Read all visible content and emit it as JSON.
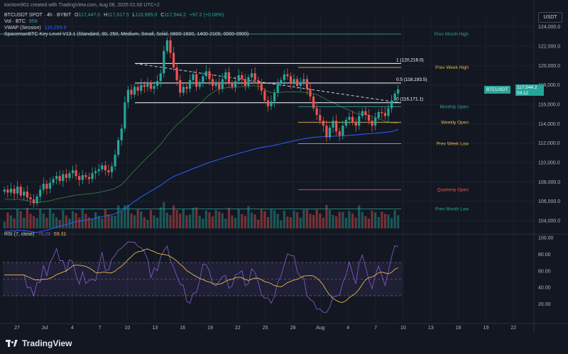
{
  "top_caption": "tomtom901 created with TradingView.com, Aug 08, 2025 01:00 UTC+2",
  "symbol_line": {
    "symbol": "BTCUSDT SPOT · 4h · BYBIT",
    "open_label": "O",
    "open": "117,447.0",
    "high_label": "H",
    "high": "117,617.5",
    "low_label": "L",
    "low": "116,995.0",
    "close_label": "C",
    "close": "117,544.2",
    "change": "+97.2 (+0.08%)"
  },
  "vol_line": {
    "label": "Vol · BTC",
    "value": "958"
  },
  "vwap_line": {
    "label": "VWAP (Session)",
    "value": "116,293.9"
  },
  "indicator_line": "SpacemanBTC Key Level V13.1 (Standard, 30, 250, Medium, Small, Solid, 0800-1600, 1400-2100, 0000-0900)",
  "rsi_line": {
    "label": "RSI (7, close)",
    "value1": "78.29",
    "value2": "59.31"
  },
  "currency": "USDT",
  "price_tag": {
    "symbol": "BTCUSDT",
    "price": "117,544.2",
    "countdown": "59:12"
  },
  "brand": "TradingView",
  "colors": {
    "up": "#26a69a",
    "down": "#ef5350",
    "vwap": "#2962ff",
    "rsi": "#7e57c2",
    "rsi_ma": "#e8b84a",
    "background": "#131722"
  },
  "icons": [
    "tradingview-logo-icon"
  ],
  "chart_data": {
    "type": "candlestick",
    "price_axis": {
      "ticks": [
        "124,000.0",
        "122,000.0",
        "120,000.0",
        "118,000.0",
        "116,000.0",
        "114,000.0",
        "112,000.0",
        "110,000.0",
        "108,000.0",
        "106,000.0",
        "104,000.0"
      ],
      "range": [
        103200,
        125000
      ]
    },
    "rsi_axis": {
      "ticks": [
        "100.00",
        "80.00",
        "60.00",
        "40.00",
        "20.00"
      ],
      "range": [
        0,
        100
      ],
      "bands": [
        30,
        50,
        70
      ]
    },
    "x_axis": {
      "labels": [
        "27",
        "Jul",
        "4",
        "7",
        "10",
        "13",
        "16",
        "19",
        "22",
        "25",
        "28",
        "Aug",
        "4",
        "7",
        "10",
        "13",
        "16",
        "19",
        "22"
      ]
    },
    "key_levels": [
      {
        "label": "Prev Month High",
        "price": 123250,
        "color": "#26a69a"
      },
      {
        "label": "Prev Week High",
        "price": 119800,
        "color": "#e8b84a"
      },
      {
        "label": "Monthly Open",
        "price": 115760,
        "color": "#26a69a"
      },
      {
        "label": "Weekly Open",
        "price": 114150,
        "color": "#e8b84a"
      },
      {
        "label": "Prev Week Low",
        "price": 111950,
        "color": "#e8b84a"
      },
      {
        "label": "Quarterly Open",
        "price": 107200,
        "color": "#ef5350"
      },
      {
        "label": "Prev Month Low",
        "price": 105200,
        "color": "#26a69a"
      }
    ],
    "fib_levels": [
      {
        "label": "1 (120,216.0)",
        "price": 120216
      },
      {
        "label": "0.5 (118,193.5)",
        "price": 118193.5
      },
      {
        "label": "0 (116,171.1)",
        "price": 116171.1
      }
    ],
    "close_series": [
      107200,
      106900,
      107300,
      106800,
      107500,
      106600,
      107000,
      106400,
      106200,
      105800,
      106500,
      107200,
      107800,
      107300,
      107900,
      108300,
      108600,
      108100,
      108800,
      108400,
      108900,
      109200,
      108600,
      108200,
      108700,
      108500,
      108300,
      108900,
      109100,
      109300,
      109700,
      109200,
      109000,
      109600,
      110800,
      112300,
      113500,
      116200,
      117500,
      117000,
      117800,
      117400,
      118000,
      117800,
      118200,
      117600,
      117900,
      118400,
      119200,
      121500,
      122600,
      121300,
      119800,
      118500,
      117200,
      117800,
      117600,
      118500,
      119100,
      117800,
      118300,
      118900,
      119400,
      118600,
      117900,
      118300,
      117600,
      118600,
      119300,
      118200,
      117800,
      118400,
      119000,
      118600,
      117900,
      118800,
      119200,
      118500,
      118100,
      117400,
      116400,
      115800,
      116300,
      117200,
      118100,
      118500,
      119100,
      118900,
      118200,
      118600,
      117900,
      118300,
      118600,
      117600,
      116800,
      115600,
      114900,
      114300,
      113800,
      112600,
      113600,
      114300,
      113200,
      112800,
      113800,
      114400,
      114700,
      114200,
      113800,
      114800,
      115300,
      114900,
      114300,
      113800,
      114600,
      115200,
      115100,
      114800,
      115600,
      116400,
      117100,
      117544.2
    ]
  }
}
